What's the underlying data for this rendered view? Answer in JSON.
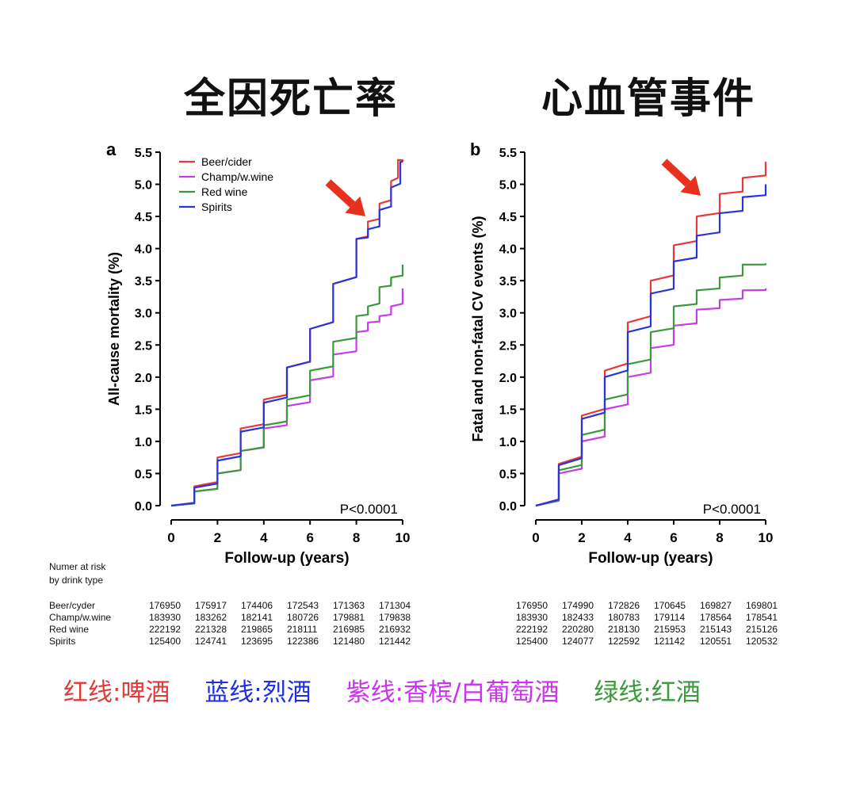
{
  "titles": {
    "left": "全因死亡率",
    "right": "心血管事件"
  },
  "risk": {
    "header_line1": "Numer at risk",
    "header_line2": "by drink type",
    "labels": [
      "Beer/cyder",
      "Champ/w.wine",
      "Red wine",
      "Spirits"
    ],
    "left": [
      [
        "176950",
        "175917",
        "174406",
        "172543",
        "171363",
        "171304"
      ],
      [
        "183930",
        "183262",
        "182141",
        "180726",
        "179881",
        "179838"
      ],
      [
        "222192",
        "221328",
        "219865",
        "218111",
        "216985",
        "216932"
      ],
      [
        "125400",
        "124741",
        "123695",
        "122386",
        "121480",
        "121442"
      ]
    ],
    "right": [
      [
        "176950",
        "174990",
        "172826",
        "170645",
        "169827",
        "169801"
      ],
      [
        "183930",
        "182433",
        "180783",
        "179114",
        "178564",
        "178541"
      ],
      [
        "222192",
        "220280",
        "218130",
        "215953",
        "215143",
        "215126"
      ],
      [
        "125400",
        "124077",
        "122592",
        "121142",
        "120551",
        "120532"
      ]
    ]
  },
  "bottom_legend": [
    {
      "text": "红线:啤酒",
      "color": "#e03a3a"
    },
    {
      "text": "蓝线:烈酒",
      "color": "#1f2fe0"
    },
    {
      "text": "紫线:香槟/白葡萄酒",
      "color": "#cc33ee"
    },
    {
      "text": "绿线:红酒",
      "color": "#3c9a3c"
    }
  ],
  "colors": {
    "beer": "#e8383c",
    "champ": "#c63ce6",
    "red": "#3a9a3a",
    "spirits": "#2a35d8",
    "arrow": "#e8301e"
  },
  "chart_data": [
    {
      "type": "line",
      "panel_letter": "a",
      "xlabel": "Follow-up (years)",
      "ylabel": "All-cause mortality (%)",
      "xlim": [
        0,
        10
      ],
      "ylim": [
        0,
        5.5
      ],
      "xticks": [
        "0",
        "2",
        "4",
        "6",
        "8",
        "10"
      ],
      "yticks": [
        "0.0",
        "0.5",
        "1.0",
        "1.5",
        "2.0",
        "2.5",
        "3.0",
        "3.5",
        "4.0",
        "4.5",
        "5.0",
        "5.5"
      ],
      "annotation": "P<0.0001",
      "legend": [
        "Beer/cider",
        "Champ/w.wine",
        "Red wine",
        "Spirits"
      ],
      "series": [
        {
          "name": "Beer/cider",
          "color": "#e8383c",
          "x": [
            0,
            1,
            2,
            3,
            4,
            5,
            6,
            7,
            8,
            8.5,
            9,
            9.5,
            9.8,
            10
          ],
          "y": [
            0,
            0.3,
            0.75,
            1.2,
            1.65,
            2.15,
            2.75,
            3.45,
            4.15,
            4.42,
            4.7,
            5.05,
            5.38,
            5.35
          ]
        },
        {
          "name": "Champ/w.wine",
          "color": "#c63ce6",
          "x": [
            0,
            1,
            2,
            3,
            4,
            5,
            6,
            7,
            8,
            8.5,
            9,
            9.5,
            10
          ],
          "y": [
            0,
            0.22,
            0.5,
            0.85,
            1.2,
            1.55,
            1.95,
            2.35,
            2.7,
            2.85,
            2.95,
            3.1,
            3.38
          ]
        },
        {
          "name": "Red wine",
          "color": "#3a9a3a",
          "x": [
            0,
            1,
            2,
            3,
            4,
            5,
            6,
            7,
            8,
            8.5,
            9,
            9.5,
            10
          ],
          "y": [
            0,
            0.22,
            0.5,
            0.85,
            1.25,
            1.65,
            2.1,
            2.55,
            2.95,
            3.1,
            3.4,
            3.55,
            3.75
          ]
        },
        {
          "name": "Spirits",
          "color": "#2a35d8",
          "x": [
            0,
            1,
            2,
            3,
            4,
            5,
            6,
            7,
            8,
            8.5,
            9,
            9.5,
            9.9,
            10
          ],
          "y": [
            0,
            0.28,
            0.7,
            1.15,
            1.6,
            2.15,
            2.75,
            3.45,
            4.15,
            4.3,
            4.6,
            4.95,
            5.35,
            5.35
          ]
        }
      ]
    },
    {
      "type": "line",
      "panel_letter": "b",
      "xlabel": "Follow-up (years)",
      "ylabel": "Fatal and non-fatal CV events (%)",
      "xlim": [
        0,
        10
      ],
      "ylim": [
        0,
        5.5
      ],
      "xticks": [
        "0",
        "2",
        "4",
        "6",
        "8",
        "10"
      ],
      "yticks": [
        "0.0",
        "0.5",
        "1.0",
        "1.5",
        "2.0",
        "2.5",
        "3.0",
        "3.5",
        "4.0",
        "4.5",
        "5.0",
        "5.5"
      ],
      "annotation": "P<0.0001",
      "series": [
        {
          "name": "Beer/cider",
          "color": "#e8383c",
          "x": [
            0,
            1,
            2,
            3,
            4,
            5,
            6,
            7,
            8,
            9,
            10
          ],
          "y": [
            0,
            0.65,
            1.4,
            2.1,
            2.85,
            3.5,
            4.05,
            4.5,
            4.85,
            5.1,
            5.35
          ]
        },
        {
          "name": "Champ/w.wine",
          "color": "#c63ce6",
          "x": [
            0,
            1,
            2,
            3,
            4,
            5,
            6,
            7,
            8,
            9,
            10
          ],
          "y": [
            0,
            0.5,
            1.0,
            1.5,
            2.0,
            2.45,
            2.8,
            3.05,
            3.2,
            3.35,
            3.38
          ]
        },
        {
          "name": "Red wine",
          "color": "#3a9a3a",
          "x": [
            0,
            1,
            2,
            3,
            4,
            5,
            6,
            7,
            8,
            9,
            10
          ],
          "y": [
            0,
            0.55,
            1.1,
            1.65,
            2.2,
            2.7,
            3.1,
            3.35,
            3.55,
            3.75,
            3.77
          ]
        },
        {
          "name": "Spirits",
          "color": "#2a35d8",
          "x": [
            0,
            1,
            2,
            3,
            4,
            5,
            6,
            7,
            8,
            9,
            10
          ],
          "y": [
            0,
            0.63,
            1.35,
            2.0,
            2.7,
            3.3,
            3.8,
            4.2,
            4.55,
            4.8,
            5.0
          ]
        }
      ]
    }
  ]
}
